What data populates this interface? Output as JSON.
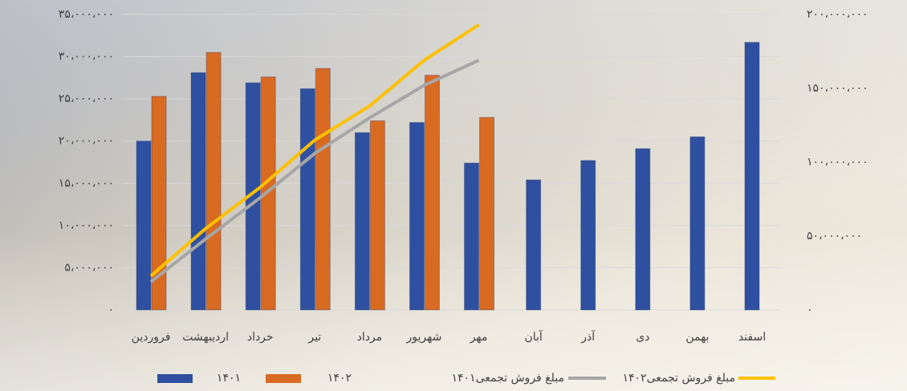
{
  "chart_data": {
    "type": "bar",
    "categories": [
      "فروردین",
      "اردیبهشت",
      "خرداد",
      "تیر",
      "مرداد",
      "شهریور",
      "مهر",
      "آبان",
      "آذر",
      "دی",
      "بهمن",
      "اسفند"
    ],
    "series": [
      {
        "name": "۱۴۰۱",
        "type": "bar",
        "color": "#2f50a0",
        "values": [
          20000000,
          28100000,
          26900000,
          26200000,
          21000000,
          22200000,
          17400000,
          15400000,
          17700000,
          19100000,
          20500000,
          31700000
        ]
      },
      {
        "name": "۱۴۰۲",
        "type": "bar",
        "color": "#d96a22",
        "values": [
          25300000,
          30500000,
          27600000,
          28600000,
          22400000,
          27800000,
          22800000,
          null,
          null,
          null,
          null,
          null
        ]
      },
      {
        "name": "مبلغ فروش  تجمعی۱۴۰۱",
        "type": "line",
        "axis": "y2",
        "color": "#a6a6a6",
        "values": [
          19000000,
          48000000,
          76000000,
          106000000,
          130000000,
          152000000,
          169000000,
          null,
          null,
          null,
          null,
          null
        ]
      },
      {
        "name": "مبلغ فروش  تجمعی۱۴۰۲",
        "type": "line",
        "axis": "y2",
        "color": "#ffc000",
        "values": [
          23000000,
          55000000,
          83000000,
          115000000,
          138000000,
          169000000,
          193000000,
          null,
          null,
          null,
          null,
          null
        ]
      }
    ],
    "ylim": [
      0,
      35000000
    ],
    "yticks": [
      {
        "value": 0,
        "label": "۰"
      },
      {
        "value": 5000000,
        "label": "۵،۰۰۰،۰۰۰"
      },
      {
        "value": 10000000,
        "label": "۱۰،۰۰۰،۰۰۰"
      },
      {
        "value": 15000000,
        "label": "۱۵،۰۰۰،۰۰۰"
      },
      {
        "value": 20000000,
        "label": "۲۰،۰۰۰،۰۰۰"
      },
      {
        "value": 25000000,
        "label": "۲۵،۰۰۰،۰۰۰"
      },
      {
        "value": 30000000,
        "label": "۳۰،۰۰۰،۰۰۰"
      },
      {
        "value": 35000000,
        "label": "۳۵،۰۰۰،۰۰۰"
      }
    ],
    "y2lim": [
      0,
      200000000
    ],
    "y2ticks": [
      {
        "value": 0,
        "label": "۰"
      },
      {
        "value": 50000000,
        "label": "۵۰،۰۰۰،۰۰۰"
      },
      {
        "value": 100000000,
        "label": "۱۰۰،۰۰۰،۰۰۰"
      },
      {
        "value": 150000000,
        "label": "۱۵۰،۰۰۰،۰۰۰"
      },
      {
        "value": 200000000,
        "label": "۲۰۰،۰۰۰،۰۰۰"
      }
    ],
    "grid": true,
    "legend": "bottom"
  }
}
